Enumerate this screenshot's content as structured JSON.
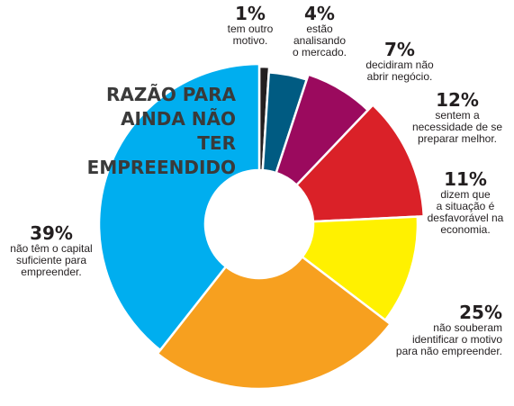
{
  "chart_data": {
    "type": "pie",
    "title_lines": [
      "RAZÃO PARA",
      "AINDA NÃO TER",
      "EMPREENDIDO"
    ],
    "slices": [
      {
        "value": 1,
        "label": "1%",
        "text": "tem outro\nmotivo.",
        "color": "#231f20"
      },
      {
        "value": 4,
        "label": "4%",
        "text": "estão\nanalisando\no mercado.",
        "color": "#005b82"
      },
      {
        "value": 7,
        "label": "7%",
        "text": "decidiram não\nabrir negócio.",
        "color": "#9b0a5e"
      },
      {
        "value": 12,
        "label": "12%",
        "text": "sentem a\nnecessidade de se\npreparar melhor.",
        "color": "#da2128"
      },
      {
        "value": 11,
        "label": "11%",
        "text": "dizem que\na situação é\ndesfavorável na\neconomia.",
        "color": "#fff100"
      },
      {
        "value": 25,
        "label": "25%",
        "text": "não souberam\nidentificar o motivo\npara não empreender.",
        "color": "#f7a01f"
      },
      {
        "value": 39,
        "label": "39%",
        "text": "não têm o capital\nsuficiente para\nempreender.",
        "color": "#00aeef"
      }
    ]
  }
}
